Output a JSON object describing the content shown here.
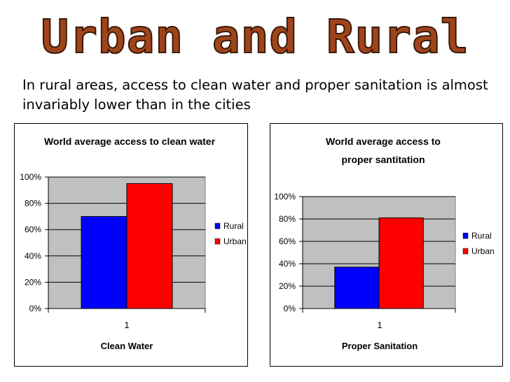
{
  "page": {
    "title": "Urban and Rural",
    "subtitle": "In rural areas, access to clean water and proper sanitation is almost invariably lower than in the cities"
  },
  "chart_data": [
    {
      "type": "bar",
      "title": "World average access to clean water",
      "xlabel": "Clean Water",
      "ylabel": "",
      "categories": [
        "1"
      ],
      "series": [
        {
          "name": "Rural",
          "values": [
            0.7
          ],
          "color": "#0000ff"
        },
        {
          "name": "Urban",
          "values": [
            0.95
          ],
          "color": "#ff0000"
        }
      ],
      "ylim": [
        0,
        1
      ],
      "yticks": [
        "0%",
        "20%",
        "40%",
        "60%",
        "80%",
        "100%"
      ],
      "grid": true,
      "legend": "right",
      "plot_background": "#c0c0c0"
    },
    {
      "type": "bar",
      "title": "World average access to proper santitation",
      "xlabel": "Proper Sanitation",
      "ylabel": "",
      "categories": [
        "1"
      ],
      "series": [
        {
          "name": "Rural",
          "values": [
            0.37
          ],
          "color": "#0000ff"
        },
        {
          "name": "Urban",
          "values": [
            0.81
          ],
          "color": "#ff0000"
        }
      ],
      "ylim": [
        0,
        1
      ],
      "yticks": [
        "0%",
        "20%",
        "40%",
        "60%",
        "80%",
        "100%"
      ],
      "grid": true,
      "legend": "right",
      "plot_background": "#c0c0c0"
    }
  ]
}
